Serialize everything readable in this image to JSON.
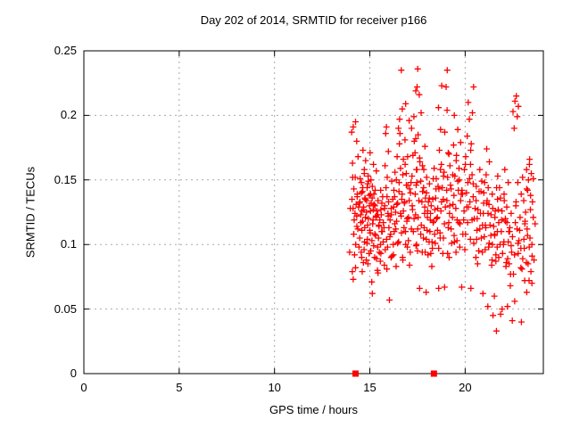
{
  "colors": {
    "background": "#ffffff",
    "border": "#000000",
    "grid": "#a8a8a8",
    "text": "#000000",
    "marker": "#ff0000"
  },
  "chart_data": {
    "type": "scatter",
    "title": "Day 202 of 2014, SRMTID for receiver p166",
    "xlabel": "GPS time / hours",
    "ylabel": "SRMTID / TECUs",
    "xlim": [
      0,
      24.1
    ],
    "ylim": [
      0,
      0.25
    ],
    "xticks": {
      "values": [
        0,
        5,
        10,
        15,
        20
      ],
      "labels": [
        "0",
        "5",
        "10",
        "15",
        "20"
      ]
    },
    "yticks": {
      "values": [
        0,
        0.05,
        0.1,
        0.15,
        0.2,
        0.25
      ],
      "labels": [
        "0",
        "0.05",
        "0.1",
        "0.15",
        "0.2",
        "0.25"
      ]
    },
    "grid": true,
    "legend": "none",
    "marker": {
      "shape": "plus",
      "color": "#ff0000",
      "size": 7
    },
    "baseline_squares": {
      "shape": "filled-square",
      "color": "#ff0000",
      "y": 0,
      "x": [
        14.25,
        18.36
      ]
    },
    "jitter_pattern": [
      0,
      0.05,
      -0.07,
      0.11,
      -0.11,
      0.03,
      -0.04,
      0.14,
      -0.14,
      0.08,
      -0.08,
      0.02,
      -0.02,
      0.12,
      -0.05,
      0.06
    ],
    "series": [
      {
        "name": "SRMTID",
        "columns": [
          {
            "x": 14.05,
            "y": [
              0.187,
              0.152,
              0.128,
              0.108,
              0.094,
              0.079
            ]
          },
          {
            "x": 14.2,
            "y": [
              0.195,
              0.191,
              0.18,
              0.163,
              0.152,
              0.143,
              0.139,
              0.135,
              0.131,
              0.128,
              0.124,
              0.119,
              0.114,
              0.108,
              0.1,
              0.092,
              0.082,
              0.073
            ]
          },
          {
            "x": 14.45,
            "y": [
              0.168,
              0.148,
              0.137,
              0.133,
              0.129,
              0.126,
              0.122,
              0.117,
              0.112,
              0.105,
              0.098,
              0.09
            ]
          },
          {
            "x": 14.6,
            "y": [
              0.158,
              0.151,
              0.144,
              0.14,
              0.136,
              0.132,
              0.127,
              0.123,
              0.118,
              0.111,
              0.102,
              0.094,
              0.086,
              0.079
            ]
          },
          {
            "x": 14.75,
            "y": [
              0.173,
              0.165,
              0.155,
              0.147,
              0.141,
              0.134,
              0.129,
              0.121,
              0.113,
              0.104,
              0.096,
              0.088
            ]
          },
          {
            "x": 14.9,
            "y": [
              0.149,
              0.144,
              0.139,
              0.135,
              0.13,
              0.125,
              0.12,
              0.115,
              0.109,
              0.101,
              0.093,
              0.085
            ]
          },
          {
            "x": 15.05,
            "y": [
              0.171,
              0.162,
              0.153,
              0.145,
              0.138,
              0.132,
              0.126,
              0.119,
              0.111,
              0.103,
              0.095,
              0.071
            ]
          },
          {
            "x": 15.2,
            "y": [
              0.157,
              0.15,
              0.142,
              0.136,
              0.131,
              0.127,
              0.122,
              0.116,
              0.108,
              0.099,
              0.09,
              0.062
            ]
          },
          {
            "x": 15.35,
            "y": [
              0.139,
              0.134,
              0.13,
              0.126,
              0.121,
              0.115,
              0.107,
              0.098,
              0.089,
              0.08
            ]
          },
          {
            "x": 15.5,
            "y": [
              0.127,
              0.123,
              0.119,
              0.114,
              0.11,
              0.105,
              0.1,
              0.094,
              0.087,
              0.078
            ]
          },
          {
            "x": 15.65,
            "y": [
              0.142,
              0.137,
              0.132,
              0.128,
              0.123,
              0.117,
              0.11,
              0.102,
              0.093,
              0.084
            ]
          },
          {
            "x": 15.85,
            "y": [
              0.191,
              0.186,
              0.172,
              0.161,
              0.152,
              0.144,
              0.137,
              0.13,
              0.122,
              0.113,
              0.104,
              0.096
            ]
          },
          {
            "x": 16.0,
            "y": [
              0.133,
              0.128,
              0.124,
              0.119,
              0.113,
              0.106,
              0.098,
              0.09,
              0.081,
              0.057
            ]
          },
          {
            "x": 16.2,
            "y": [
              0.156,
              0.149,
              0.142,
              0.135,
              0.129,
              0.123,
              0.116,
              0.108,
              0.1,
              0.091
            ]
          },
          {
            "x": 16.35,
            "y": [
              0.137,
              0.131,
              0.125,
              0.118,
              0.11,
              0.101,
              0.092,
              0.083
            ]
          },
          {
            "x": 16.5,
            "y": [
              0.197,
              0.19,
              0.178,
              0.168,
              0.159,
              0.15,
              0.141,
              0.132,
              0.122,
              0.112
            ]
          },
          {
            "x": 16.65,
            "y": [
              0.235,
              0.205,
              0.186,
              0.166,
              0.148,
              0.135,
              0.124,
              0.113,
              0.102,
              0.088
            ]
          },
          {
            "x": 16.8,
            "y": [
              0.162,
              0.154,
              0.146,
              0.139,
              0.133,
              0.126,
              0.118,
              0.109,
              0.1,
              0.09
            ]
          },
          {
            "x": 16.95,
            "y": [
              0.209,
              0.196,
              0.181,
              0.168,
              0.155,
              0.143,
              0.132,
              0.121,
              0.11,
              0.098
            ]
          },
          {
            "x": 17.1,
            "y": [
              0.153,
              0.146,
              0.14,
              0.134,
              0.127,
              0.12,
              0.112,
              0.103,
              0.094,
              0.084
            ]
          },
          {
            "x": 17.3,
            "y": [
              0.19,
              0.18,
              0.169,
              0.158,
              0.148,
              0.139,
              0.13,
              0.12,
              0.11,
              0.099
            ]
          },
          {
            "x": 17.45,
            "y": [
              0.222,
              0.219,
              0.216,
              0.199,
              0.185,
              0.171,
              0.158,
              0.146,
              0.134,
              0.123,
              0.112,
              0.1
            ]
          },
          {
            "x": 17.55,
            "y": [
              0.236,
              0.202,
              0.182,
              0.164,
              0.148,
              0.134,
              0.121,
              0.108,
              0.095,
              0.066
            ]
          },
          {
            "x": 17.75,
            "y": [
              0.176,
              0.167,
              0.158,
              0.149,
              0.141,
              0.133,
              0.124,
              0.115,
              0.105,
              0.094
            ]
          },
          {
            "x": 17.9,
            "y": [
              0.161,
              0.152,
              0.144,
              0.136,
              0.129,
              0.121,
              0.113,
              0.104,
              0.094,
              0.063
            ]
          },
          {
            "x": 18.05,
            "y": [
              0.147,
              0.14,
              0.133,
              0.126,
              0.119,
              0.111,
              0.102,
              0.092
            ]
          },
          {
            "x": 18.2,
            "y": [
              0.136,
              0.13,
              0.124,
              0.117,
              0.11,
              0.102,
              0.093,
              0.083
            ]
          },
          {
            "x": 18.35,
            "y": [
              0.159,
              0.151,
              0.143,
              0.135,
              0.127,
              0.118,
              0.108,
              0.097
            ]
          },
          {
            "x": 18.5,
            "y": [
              0.151,
              0.143,
              0.136,
              0.128,
              0.12,
              0.111,
              0.101,
              0.066
            ]
          },
          {
            "x": 18.65,
            "y": [
              0.223,
              0.206,
              0.189,
              0.173,
              0.158,
              0.145,
              0.133,
              0.121,
              0.109,
              0.097
            ]
          },
          {
            "x": 18.8,
            "y": [
              0.162,
              0.153,
              0.144,
              0.135,
              0.126,
              0.116,
              0.105,
              0.093
            ]
          },
          {
            "x": 19.0,
            "y": [
              0.235,
              0.222,
              0.204,
              0.187,
              0.171,
              0.156,
              0.142,
              0.129,
              0.117,
              0.105,
              0.093,
              0.067
            ]
          },
          {
            "x": 19.15,
            "y": [
              0.17,
              0.161,
              0.152,
              0.143,
              0.134,
              0.124,
              0.113,
              0.101
            ]
          },
          {
            "x": 19.3,
            "y": [
              0.154,
              0.146,
              0.138,
              0.13,
              0.121,
              0.112,
              0.102,
              0.09
            ]
          },
          {
            "x": 19.5,
            "y": [
              0.2,
              0.189,
              0.177,
              0.165,
              0.153,
              0.142,
              0.131,
              0.119,
              0.107,
              0.094
            ]
          },
          {
            "x": 19.65,
            "y": [
              0.179,
              0.169,
              0.159,
              0.149,
              0.139,
              0.128,
              0.116,
              0.103
            ]
          },
          {
            "x": 19.8,
            "y": [
              0.15,
              0.142,
              0.134,
              0.126,
              0.117,
              0.108,
              0.098,
              0.067
            ]
          },
          {
            "x": 20.0,
            "y": [
              0.168,
              0.158,
              0.148,
              0.139,
              0.129,
              0.119,
              0.108,
              0.096
            ]
          },
          {
            "x": 20.15,
            "y": [
              0.184,
              0.173,
              0.162,
              0.151,
              0.14,
              0.129,
              0.117,
              0.104
            ]
          },
          {
            "x": 20.3,
            "y": [
              0.222,
              0.21,
              0.202,
              0.197,
              0.178,
              0.162,
              0.147,
              0.133,
              0.119,
              0.066
            ]
          },
          {
            "x": 20.5,
            "y": [
              0.154,
              0.145,
              0.137,
              0.128,
              0.12,
              0.111,
              0.101,
              0.09
            ]
          },
          {
            "x": 20.65,
            "y": [
              0.141,
              0.134,
              0.127,
              0.12,
              0.112,
              0.104,
              0.095,
              0.085
            ]
          },
          {
            "x": 20.85,
            "y": [
              0.158,
              0.149,
              0.141,
              0.132,
              0.124,
              0.115,
              0.105,
              0.094
            ]
          },
          {
            "x": 21.0,
            "y": [
              0.148,
              0.14,
              0.132,
              0.124,
              0.115,
              0.106,
              0.096,
              0.062
            ]
          },
          {
            "x": 21.15,
            "y": [
              0.174,
              0.164,
              0.154,
              0.144,
              0.134,
              0.124,
              0.113,
              0.101
            ]
          },
          {
            "x": 21.3,
            "y": [
              0.139,
              0.131,
              0.123,
              0.115,
              0.107,
              0.098,
              0.088,
              0.052
            ]
          },
          {
            "x": 21.5,
            "y": [
              0.128,
              0.121,
              0.114,
              0.107,
              0.1,
              0.092,
              0.084,
              0.06,
              0.045,
              0.033
            ]
          },
          {
            "x": 21.65,
            "y": [
              0.153,
              0.144,
              0.135,
              0.126,
              0.117,
              0.108,
              0.098,
              0.087
            ]
          },
          {
            "x": 21.8,
            "y": [
              0.144,
              0.136,
              0.127,
              0.119,
              0.11,
              0.1,
              0.09,
              0.05
            ]
          },
          {
            "x": 22.0,
            "y": [
              0.134,
              0.126,
              0.118,
              0.11,
              0.102,
              0.093,
              0.083,
              0.046
            ]
          },
          {
            "x": 22.15,
            "y": [
              0.158,
              0.148,
              0.139,
              0.129,
              0.12,
              0.11,
              0.1,
              0.089
            ]
          },
          {
            "x": 22.3,
            "y": [
              0.124,
              0.117,
              0.11,
              0.102,
              0.094,
              0.086,
              0.077,
              0.052
            ]
          },
          {
            "x": 22.45,
            "y": [
              0.113,
              0.106,
              0.099,
              0.092,
              0.085,
              0.077,
              0.068,
              0.041
            ]
          },
          {
            "x": 22.65,
            "y": [
              0.215,
              0.211,
              0.207,
              0.203,
              0.199,
              0.19,
              0.133,
              0.117,
              0.101,
              0.056
            ]
          },
          {
            "x": 22.8,
            "y": [
              0.148,
              0.139,
              0.13,
              0.121,
              0.112,
              0.103,
              0.093,
              0.082
            ]
          },
          {
            "x": 23.0,
            "y": [
              0.118,
              0.111,
              0.104,
              0.097,
              0.089,
              0.081,
              0.072,
              0.04
            ]
          },
          {
            "x": 23.15,
            "y": [
              0.152,
              0.143,
              0.134,
              0.125,
              0.116,
              0.107,
              0.097,
              0.086
            ]
          },
          {
            "x": 23.3,
            "y": [
              0.166,
              0.158,
              0.15,
              0.142,
              0.127,
              0.112,
              0.098,
              0.085,
              0.072,
              0.063
            ]
          },
          {
            "x": 23.45,
            "y": [
              0.162,
              0.155,
              0.138,
              0.121,
              0.105,
              0.091,
              0.079,
              0.07
            ]
          },
          {
            "x": 23.55,
            "y": [
              0.151,
              0.133,
              0.116,
              0.1,
              0.088
            ]
          }
        ]
      }
    ]
  }
}
